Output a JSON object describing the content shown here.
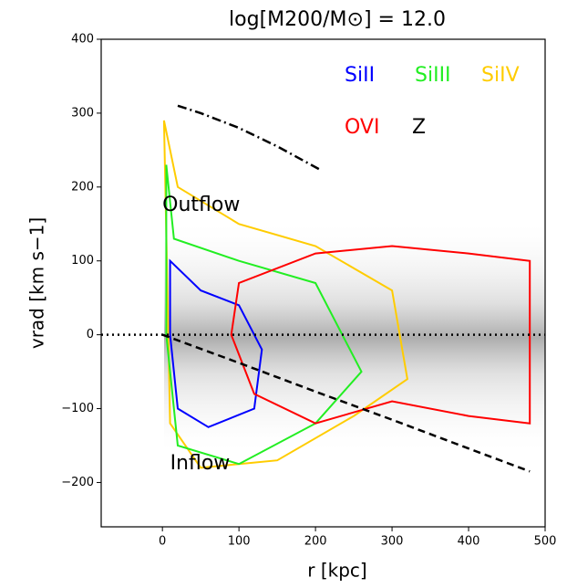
{
  "chart_data": {
    "type": "contour",
    "title": "log[M200/M⊙] = 12.0",
    "xlabel": "r [kpc]",
    "ylabel": "vrad [km s−1]",
    "xlim": [
      -80,
      500
    ],
    "ylim": [
      -260,
      400
    ],
    "xticks": [
      0,
      100,
      200,
      300,
      400,
      500
    ],
    "yticks": [
      {
        "value": -200,
        "label": "−200"
      },
      {
        "value": -100,
        "label": "−100"
      },
      0,
      100,
      200,
      300,
      400
    ],
    "legend": [
      {
        "label": "SiII",
        "color": "#0000ff"
      },
      {
        "label": "SiIII",
        "color": "#22ee22"
      },
      {
        "label": "SiIV",
        "color": "#ffcc00"
      },
      {
        "label": "OVI",
        "color": "#ff0000"
      },
      {
        "label": "Z",
        "color": "#000000"
      }
    ],
    "contours": [
      {
        "species": 2,
        "x": [
          2,
          20,
          100,
          200,
          300,
          320,
          250,
          150,
          50,
          10
        ],
        "y": [
          290,
          200,
          150,
          120,
          60,
          -60,
          -110,
          -170,
          -180,
          -120
        ]
      },
      {
        "species": 1,
        "x": [
          5,
          15,
          100,
          200,
          260,
          200,
          100,
          20,
          5
        ],
        "y": [
          230,
          130,
          100,
          70,
          -50,
          -120,
          -175,
          -150,
          0
        ]
      },
      {
        "species": 0,
        "x": [
          10,
          50,
          100,
          130,
          120,
          60,
          20,
          10
        ],
        "y": [
          100,
          60,
          40,
          -20,
          -100,
          -125,
          -100,
          0
        ]
      },
      {
        "species": 3,
        "x": [
          90,
          100,
          200,
          300,
          400,
          480,
          480,
          400,
          300,
          200,
          120
        ],
        "y": [
          0,
          70,
          110,
          120,
          110,
          100,
          -120,
          -110,
          -90,
          -120,
          -80
        ]
      }
    ],
    "lines": [
      {
        "style": "dotted",
        "x": [
          -80,
          500
        ],
        "y": [
          0,
          0
        ]
      },
      {
        "style": "dashed",
        "x": [
          0,
          100,
          200,
          300,
          400,
          480
        ],
        "y": [
          0,
          -38,
          -77,
          -115,
          -154,
          -185
        ]
      },
      {
        "style": "dashdot",
        "x": [
          20,
          50,
          100,
          150,
          205
        ],
        "y": [
          310,
          300,
          280,
          255,
          224
        ]
      }
    ],
    "annotations": [
      {
        "text": "Outflow",
        "x": 0,
        "y": 175
      },
      {
        "text": "Inflow",
        "x": 10,
        "y": -175
      }
    ]
  }
}
